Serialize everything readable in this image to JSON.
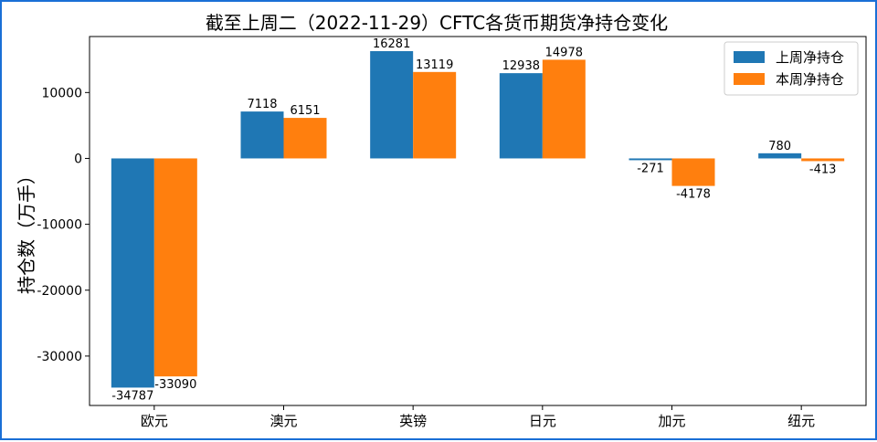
{
  "chart_data": {
    "type": "bar",
    "title": "截至上周二（2022-11-29）CFTC各货币期货净持仓变化",
    "ylabel": "持仓数（万手）",
    "xlabel": "",
    "categories": [
      "欧元",
      "澳元",
      "英镑",
      "日元",
      "加元",
      "纽元"
    ],
    "series": [
      {
        "name": "上周净持仓",
        "color": "#1f77b4",
        "values": [
          -34787,
          7118,
          16281,
          12938,
          -271,
          780
        ]
      },
      {
        "name": "本周净持仓",
        "color": "#ff7f0e",
        "values": [
          -33090,
          6151,
          13119,
          14978,
          -4178,
          -413
        ]
      }
    ],
    "ylim": [
      -37500,
      18500
    ],
    "yticks": [
      -30000,
      -20000,
      -10000,
      0,
      10000
    ],
    "grid": false,
    "legend": "top-right"
  }
}
